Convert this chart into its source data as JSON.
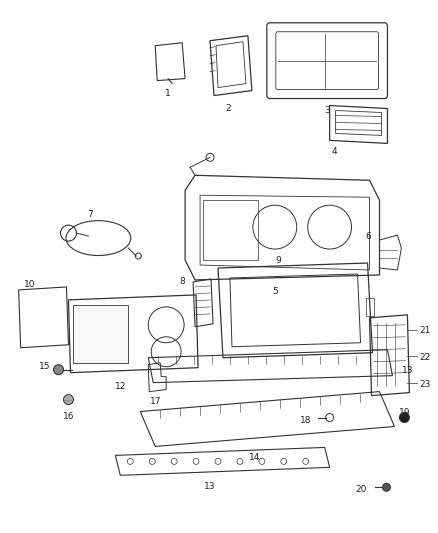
{
  "background_color": "#ffffff",
  "line_color": "#333333",
  "text_color": "#222222",
  "figsize": [
    4.38,
    5.33
  ],
  "dpi": 100
}
